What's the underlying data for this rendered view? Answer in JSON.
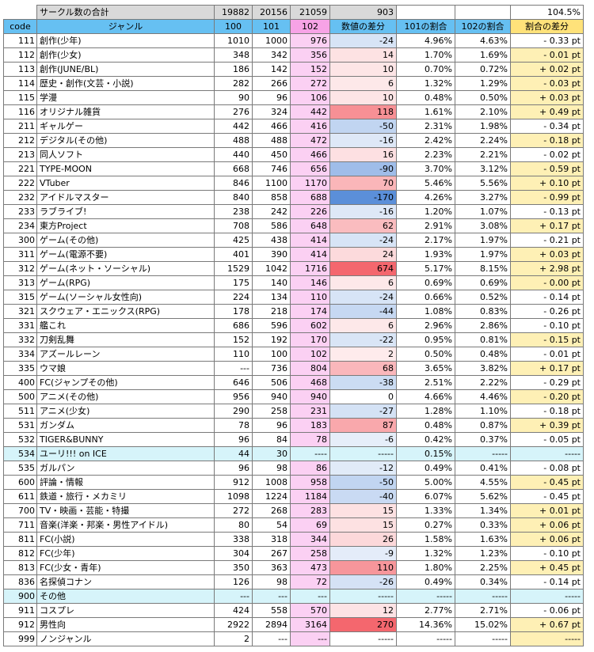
{
  "summary": {
    "label": "サークル数の合計",
    "total_100": "19882",
    "total_101": "20156",
    "total_102": "21059",
    "total_diff": "903",
    "ratio": "104.5%"
  },
  "headers": [
    "code",
    "ジャンル",
    "100",
    "101",
    "102",
    "数値の差分",
    "101の割合",
    "102の割合",
    "割合の差分"
  ],
  "rows": [
    {
      "code": "111",
      "genre": "創作(少年)",
      "c100": "1010",
      "c101": "1000",
      "c102": "976",
      "diff": "-24",
      "r101": "4.96%",
      "r102": "4.63%",
      "rdiff": "- 0.33 pt"
    },
    {
      "code": "112",
      "genre": "創作(少女)",
      "c100": "348",
      "c101": "342",
      "c102": "356",
      "diff": "14",
      "r101": "1.70%",
      "r102": "1.69%",
      "rdiff": "- 0.01 pt"
    },
    {
      "code": "113",
      "genre": "創作(JUNE/BL)",
      "c100": "186",
      "c101": "142",
      "c102": "152",
      "diff": "10",
      "r101": "0.70%",
      "r102": "0.72%",
      "rdiff": "+ 0.02 pt"
    },
    {
      "code": "114",
      "genre": "歴史・創作(文芸・小説)",
      "c100": "282",
      "c101": "266",
      "c102": "272",
      "diff": "6",
      "r101": "1.32%",
      "r102": "1.29%",
      "rdiff": "- 0.03 pt"
    },
    {
      "code": "115",
      "genre": "学漫",
      "c100": "90",
      "c101": "96",
      "c102": "106",
      "diff": "10",
      "r101": "0.48%",
      "r102": "0.50%",
      "rdiff": "+ 0.03 pt"
    },
    {
      "code": "116",
      "genre": "オリジナル雑貨",
      "c100": "276",
      "c101": "324",
      "c102": "442",
      "diff": "118",
      "r101": "1.61%",
      "r102": "2.10%",
      "rdiff": "+ 0.49 pt"
    },
    {
      "code": "211",
      "genre": "ギャルゲー",
      "c100": "442",
      "c101": "466",
      "c102": "416",
      "diff": "-50",
      "r101": "2.31%",
      "r102": "1.98%",
      "rdiff": "- 0.34 pt"
    },
    {
      "code": "212",
      "genre": "デジタル(その他)",
      "c100": "488",
      "c101": "488",
      "c102": "472",
      "diff": "-16",
      "r101": "2.42%",
      "r102": "2.24%",
      "rdiff": "- 0.18 pt"
    },
    {
      "code": "213",
      "genre": "同人ソフト",
      "c100": "440",
      "c101": "450",
      "c102": "466",
      "diff": "16",
      "r101": "2.23%",
      "r102": "2.21%",
      "rdiff": "- 0.02 pt"
    },
    {
      "code": "221",
      "genre": "TYPE-MOON",
      "c100": "668",
      "c101": "746",
      "c102": "656",
      "diff": "-90",
      "r101": "3.70%",
      "r102": "3.12%",
      "rdiff": "- 0.59 pt"
    },
    {
      "code": "222",
      "genre": "VTuber",
      "c100": "846",
      "c101": "1100",
      "c102": "1170",
      "diff": "70",
      "r101": "5.46%",
      "r102": "5.56%",
      "rdiff": "+ 0.10 pt"
    },
    {
      "code": "232",
      "genre": "アイドルマスター",
      "c100": "840",
      "c101": "858",
      "c102": "688",
      "diff": "-170",
      "r101": "4.26%",
      "r102": "3.27%",
      "rdiff": "- 0.99 pt"
    },
    {
      "code": "233",
      "genre": "ラブライブ!",
      "c100": "238",
      "c101": "242",
      "c102": "226",
      "diff": "-16",
      "r101": "1.20%",
      "r102": "1.07%",
      "rdiff": "- 0.13 pt"
    },
    {
      "code": "234",
      "genre": "東方Project",
      "c100": "708",
      "c101": "586",
      "c102": "648",
      "diff": "62",
      "r101": "2.91%",
      "r102": "3.08%",
      "rdiff": "+ 0.17 pt"
    },
    {
      "code": "300",
      "genre": "ゲーム(その他)",
      "c100": "425",
      "c101": "438",
      "c102": "414",
      "diff": "-24",
      "r101": "2.17%",
      "r102": "1.97%",
      "rdiff": "- 0.21 pt"
    },
    {
      "code": "311",
      "genre": "ゲーム(電源不要)",
      "c100": "401",
      "c101": "390",
      "c102": "414",
      "diff": "24",
      "r101": "1.93%",
      "r102": "1.97%",
      "rdiff": "+ 0.03 pt"
    },
    {
      "code": "312",
      "genre": "ゲーム(ネット・ソーシャル)",
      "c100": "1529",
      "c101": "1042",
      "c102": "1716",
      "diff": "674",
      "r101": "5.17%",
      "r102": "8.15%",
      "rdiff": "+ 2.98 pt"
    },
    {
      "code": "313",
      "genre": "ゲーム(RPG)",
      "c100": "175",
      "c101": "140",
      "c102": "146",
      "diff": "6",
      "r101": "0.69%",
      "r102": "0.69%",
      "rdiff": "- 0.00 pt"
    },
    {
      "code": "315",
      "genre": "ゲーム(ソーシャル女性向)",
      "c100": "224",
      "c101": "134",
      "c102": "110",
      "diff": "-24",
      "r101": "0.66%",
      "r102": "0.52%",
      "rdiff": "- 0.14 pt"
    },
    {
      "code": "321",
      "genre": "スクウェア・エニックス(RPG)",
      "c100": "178",
      "c101": "218",
      "c102": "174",
      "diff": "-44",
      "r101": "1.08%",
      "r102": "0.83%",
      "rdiff": "- 0.26 pt"
    },
    {
      "code": "331",
      "genre": "艦これ",
      "c100": "686",
      "c101": "596",
      "c102": "602",
      "diff": "6",
      "r101": "2.96%",
      "r102": "2.86%",
      "rdiff": "- 0.10 pt"
    },
    {
      "code": "332",
      "genre": "刀剣乱舞",
      "c100": "152",
      "c101": "192",
      "c102": "170",
      "diff": "-22",
      "r101": "0.95%",
      "r102": "0.81%",
      "rdiff": "- 0.15 pt"
    },
    {
      "code": "334",
      "genre": "アズールレーン",
      "c100": "110",
      "c101": "100",
      "c102": "102",
      "diff": "2",
      "r101": "0.50%",
      "r102": "0.48%",
      "rdiff": "- 0.01 pt"
    },
    {
      "code": "335",
      "genre": "ウマ娘",
      "c100": "---",
      "c101": "736",
      "c102": "804",
      "diff": "68",
      "r101": "3.65%",
      "r102": "3.82%",
      "rdiff": "+ 0.17 pt"
    },
    {
      "code": "400",
      "genre": "FC(ジャンプその他)",
      "c100": "646",
      "c101": "506",
      "c102": "468",
      "diff": "-38",
      "r101": "2.51%",
      "r102": "2.22%",
      "rdiff": "- 0.29 pt"
    },
    {
      "code": "500",
      "genre": "アニメ(その他)",
      "c100": "956",
      "c101": "940",
      "c102": "940",
      "diff": "0",
      "r101": "4.66%",
      "r102": "4.46%",
      "rdiff": "- 0.20 pt"
    },
    {
      "code": "511",
      "genre": "アニメ(少女)",
      "c100": "290",
      "c101": "258",
      "c102": "231",
      "diff": "-27",
      "r101": "1.28%",
      "r102": "1.10%",
      "rdiff": "- 0.18 pt"
    },
    {
      "code": "531",
      "genre": "ガンダム",
      "c100": "78",
      "c101": "96",
      "c102": "183",
      "diff": "87",
      "r101": "0.48%",
      "r102": "0.87%",
      "rdiff": "+ 0.39 pt"
    },
    {
      "code": "532",
      "genre": "TIGER&BUNNY",
      "c100": "96",
      "c101": "84",
      "c102": "78",
      "diff": "-6",
      "r101": "0.42%",
      "r102": "0.37%",
      "rdiff": "- 0.05 pt"
    },
    {
      "code": "534",
      "genre": "ユーリ!!! on ICE",
      "c100": "44",
      "c101": "30",
      "c102": "----",
      "diff": "-----",
      "r101": "0.15%",
      "r102": "-----",
      "rdiff": "-----",
      "cyan": true
    },
    {
      "code": "535",
      "genre": "ガルパン",
      "c100": "96",
      "c101": "98",
      "c102": "86",
      "diff": "-12",
      "r101": "0.49%",
      "r102": "0.41%",
      "rdiff": "- 0.08 pt"
    },
    {
      "code": "600",
      "genre": "評論・情報",
      "c100": "912",
      "c101": "1008",
      "c102": "958",
      "diff": "-50",
      "r101": "5.00%",
      "r102": "4.55%",
      "rdiff": "- 0.45 pt"
    },
    {
      "code": "611",
      "genre": "鉄道・旅行・メカミリ",
      "c100": "1098",
      "c101": "1224",
      "c102": "1184",
      "diff": "-40",
      "r101": "6.07%",
      "r102": "5.62%",
      "rdiff": "- 0.45 pt"
    },
    {
      "code": "700",
      "genre": "TV・映画・芸能・特撮",
      "c100": "272",
      "c101": "268",
      "c102": "283",
      "diff": "15",
      "r101": "1.33%",
      "r102": "1.34%",
      "rdiff": "+ 0.01 pt"
    },
    {
      "code": "711",
      "genre": "音楽(洋楽・邦楽・男性アイドル)",
      "c100": "80",
      "c101": "54",
      "c102": "69",
      "diff": "15",
      "r101": "0.27%",
      "r102": "0.33%",
      "rdiff": "+ 0.06 pt"
    },
    {
      "code": "811",
      "genre": "FC(小説)",
      "c100": "338",
      "c101": "318",
      "c102": "344",
      "diff": "26",
      "r101": "1.58%",
      "r102": "1.63%",
      "rdiff": "+ 0.06 pt"
    },
    {
      "code": "812",
      "genre": "FC(少年)",
      "c100": "304",
      "c101": "267",
      "c102": "258",
      "diff": "-9",
      "r101": "1.32%",
      "r102": "1.23%",
      "rdiff": "- 0.10 pt"
    },
    {
      "code": "813",
      "genre": "FC(少女・青年)",
      "c100": "350",
      "c101": "363",
      "c102": "473",
      "diff": "110",
      "r101": "1.80%",
      "r102": "2.25%",
      "rdiff": "+ 0.45 pt"
    },
    {
      "code": "836",
      "genre": "名探偵コナン",
      "c100": "126",
      "c101": "98",
      "c102": "72",
      "diff": "-26",
      "r101": "0.49%",
      "r102": "0.34%",
      "rdiff": "- 0.14 pt"
    },
    {
      "code": "900",
      "genre": "その他",
      "c100": "---",
      "c101": "---",
      "c102": "---",
      "diff": "-----",
      "r101": "-----",
      "r102": "-----",
      "rdiff": "-----",
      "cyan": true
    },
    {
      "code": "911",
      "genre": "コスプレ",
      "c100": "424",
      "c101": "558",
      "c102": "570",
      "diff": "12",
      "r101": "2.77%",
      "r102": "2.71%",
      "rdiff": "- 0.06 pt"
    },
    {
      "code": "912",
      "genre": "男性向",
      "c100": "2922",
      "c101": "2894",
      "c102": "3164",
      "diff": "270",
      "r101": "14.36%",
      "r102": "15.02%",
      "rdiff": "+ 0.67 pt"
    },
    {
      "code": "999",
      "genre": "ノンジャンル",
      "c100": "2",
      "c101": "---",
      "c102": "---",
      "diff": "-----",
      "r101": "-----",
      "r102": "-----",
      "rdiff": "-----"
    }
  ],
  "colors": {
    "header_blue": "#66c0f2",
    "header_pink": "#f7a3e6",
    "header_yellow": "#ffe27a",
    "diff_positive": "#f4676e",
    "diff_negative": "#5b8fd9",
    "row_cyan": "#d6f4fa"
  }
}
